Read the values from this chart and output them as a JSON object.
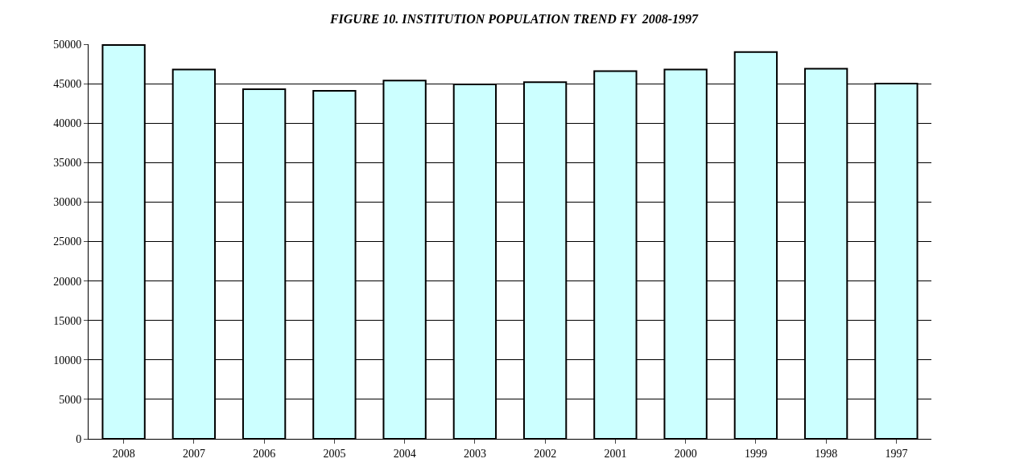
{
  "chart_data": {
    "type": "bar",
    "title": "FIGURE 10. INSTITUTION POPULATION TREND FY  2008-1997",
    "categories": [
      "2008",
      "2007",
      "2006",
      "2005",
      "2004",
      "2003",
      "2002",
      "2001",
      "2000",
      "1999",
      "1998",
      "1997"
    ],
    "values": [
      49900,
      46800,
      44300,
      44100,
      45400,
      44900,
      45200,
      46600,
      46800,
      49000,
      46900,
      45000
    ],
    "color": "#ccffff",
    "ylim": [
      0,
      50000
    ],
    "yticks": [
      0,
      5000,
      10000,
      15000,
      20000,
      25000,
      30000,
      35000,
      40000,
      45000,
      50000
    ],
    "grid": "y"
  }
}
